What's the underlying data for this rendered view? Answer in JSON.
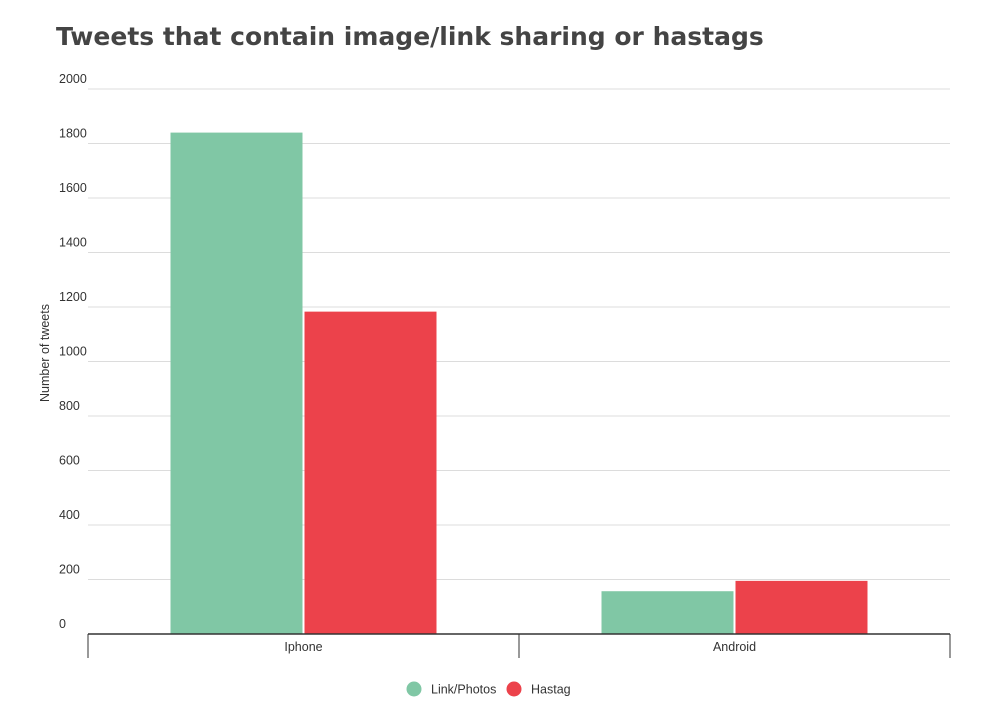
{
  "chart_data": {
    "type": "bar",
    "title": "Tweets that contain image/link sharing or hastags",
    "xlabel": "",
    "ylabel": "Number of tweets",
    "categories": [
      "Iphone",
      "Android"
    ],
    "series": [
      {
        "name": "Link/Photos",
        "color": "#80c7a5",
        "values": [
          1840,
          157
        ]
      },
      {
        "name": "Hastag",
        "color": "#ec424b",
        "values": [
          1183,
          195
        ]
      }
    ],
    "ylim": [
      0,
      2000
    ],
    "yticks": [
      "0",
      "200",
      "400",
      "600",
      "800",
      "1000",
      "1200",
      "1400",
      "1600",
      "1800",
      "2000"
    ],
    "grid": true,
    "legend_position": "bottom"
  }
}
